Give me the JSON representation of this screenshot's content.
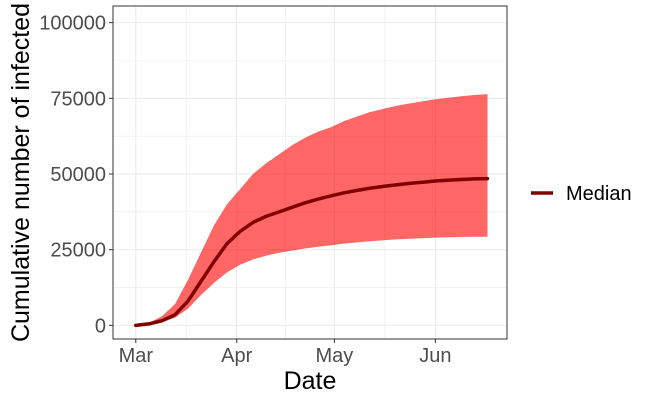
{
  "chart_data": {
    "type": "area",
    "xlabel": "Date",
    "ylabel": "Cumulative number of infected",
    "x_ticks": [
      {
        "date": "2020-03-01",
        "label": "Mar"
      },
      {
        "date": "2020-04-01",
        "label": "Apr"
      },
      {
        "date": "2020-05-01",
        "label": "May"
      },
      {
        "date": "2020-06-01",
        "label": "Jun"
      }
    ],
    "y_ticks": [
      0,
      25000,
      50000,
      75000,
      100000
    ],
    "y_tick_labels": [
      "0",
      "25000",
      "50000",
      "75000",
      "100000"
    ],
    "xlim": [
      "2020-02-23",
      "2020-06-23"
    ],
    "ylim": [
      -4500,
      105500
    ],
    "grid": true,
    "legend": {
      "position": "right",
      "label": "Median"
    },
    "colors": {
      "median": "#800000",
      "band": "#ff0000",
      "grid": "#ebebeb",
      "panel_border": "#333333"
    },
    "series": [
      {
        "name": "Median",
        "x": [
          "2020-03-01",
          "2020-03-05",
          "2020-03-09",
          "2020-03-13",
          "2020-03-17",
          "2020-03-21",
          "2020-03-25",
          "2020-03-29",
          "2020-04-02",
          "2020-04-06",
          "2020-04-10",
          "2020-04-14",
          "2020-04-18",
          "2020-04-22",
          "2020-04-26",
          "2020-04-30",
          "2020-05-04",
          "2020-05-08",
          "2020-05-12",
          "2020-05-16",
          "2020-05-20",
          "2020-05-24",
          "2020-05-28",
          "2020-06-01",
          "2020-06-05",
          "2020-06-09",
          "2020-06-13",
          "2020-06-17"
        ],
        "values": [
          0,
          500,
          1500,
          3500,
          8000,
          14500,
          21000,
          27000,
          31000,
          34000,
          36000,
          37500,
          39000,
          40500,
          41700,
          42800,
          43800,
          44600,
          45300,
          45900,
          46400,
          46900,
          47300,
          47700,
          48000,
          48200,
          48400,
          48500
        ]
      }
    ],
    "band": {
      "x": [
        "2020-03-01",
        "2020-03-05",
        "2020-03-09",
        "2020-03-13",
        "2020-03-17",
        "2020-03-21",
        "2020-03-25",
        "2020-03-29",
        "2020-04-02",
        "2020-04-06",
        "2020-04-10",
        "2020-04-14",
        "2020-04-18",
        "2020-04-22",
        "2020-04-26",
        "2020-04-30",
        "2020-05-04",
        "2020-05-08",
        "2020-05-12",
        "2020-05-16",
        "2020-05-20",
        "2020-05-24",
        "2020-05-28",
        "2020-06-01",
        "2020-06-05",
        "2020-06-09",
        "2020-06-13",
        "2020-06-17"
      ],
      "lower": [
        0,
        300,
        1000,
        2500,
        5500,
        10000,
        14000,
        17500,
        20000,
        21800,
        23000,
        24000,
        24700,
        25400,
        26000,
        26500,
        27000,
        27400,
        27800,
        28100,
        28400,
        28600,
        28800,
        29000,
        29100,
        29200,
        29300,
        29300
      ],
      "upper": [
        0,
        800,
        3000,
        7000,
        15000,
        24000,
        33000,
        40000,
        45000,
        50000,
        53500,
        56500,
        59500,
        62000,
        64000,
        65500,
        67500,
        69000,
        70500,
        71500,
        72500,
        73300,
        74000,
        74700,
        75200,
        75700,
        76100,
        76400
      ]
    }
  }
}
